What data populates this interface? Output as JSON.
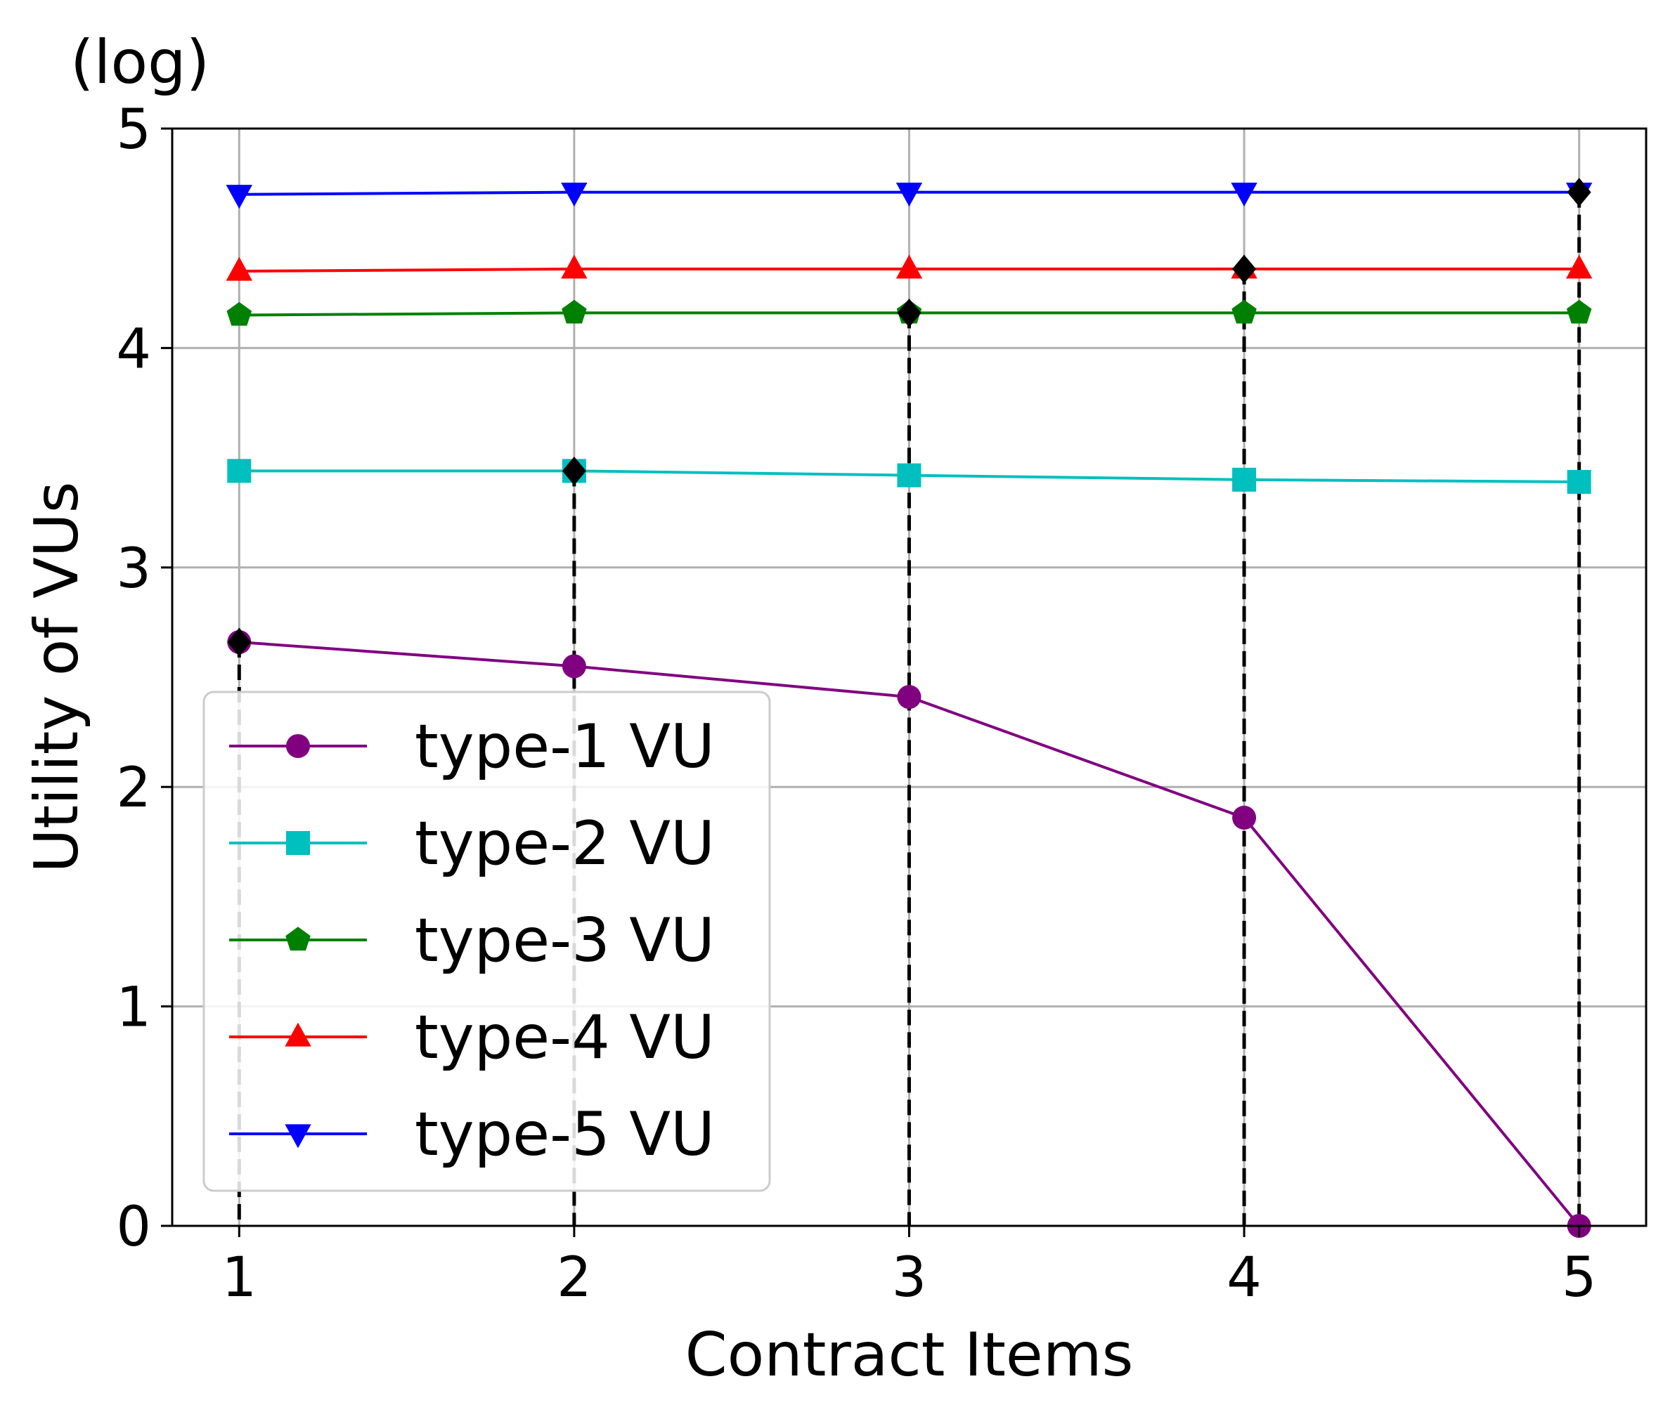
{
  "chart_data": {
    "type": "line",
    "title": "",
    "scale_note": "(log)",
    "xlabel": "Contract Items",
    "ylabel": "Utility of VUs",
    "x": [
      1,
      2,
      3,
      4,
      5
    ],
    "xlim": [
      0.8,
      5.2
    ],
    "ylim": [
      0,
      5
    ],
    "xticks": [
      "1",
      "2",
      "3",
      "4",
      "5"
    ],
    "yticks": [
      "0",
      "1",
      "2",
      "3",
      "4",
      "5"
    ],
    "grid": true,
    "legend_position": "lower-left",
    "series": [
      {
        "name": "type-1 VU",
        "color": "#800080",
        "marker": "circle",
        "values": [
          2.66,
          2.55,
          2.41,
          1.86,
          0.0
        ]
      },
      {
        "name": "type-2 VU",
        "color": "#00BFBF",
        "marker": "square",
        "values": [
          3.44,
          3.44,
          3.42,
          3.4,
          3.39
        ]
      },
      {
        "name": "type-3 VU",
        "color": "#008000",
        "marker": "pentagon",
        "values": [
          4.15,
          4.16,
          4.16,
          4.16,
          4.16
        ]
      },
      {
        "name": "type-4 VU",
        "color": "#FF0000",
        "marker": "triangle-up",
        "values": [
          4.35,
          4.36,
          4.36,
          4.36,
          4.36
        ]
      },
      {
        "name": "type-5 VU",
        "color": "#0000FF",
        "marker": "triangle-down",
        "values": [
          4.7,
          4.71,
          4.71,
          4.71,
          4.71
        ]
      }
    ],
    "highlighted_points": {
      "color": "#000000",
      "marker": "diamond",
      "x": [
        1,
        2,
        3,
        4,
        5
      ],
      "values": [
        2.66,
        3.44,
        4.16,
        4.36,
        4.71
      ]
    }
  }
}
